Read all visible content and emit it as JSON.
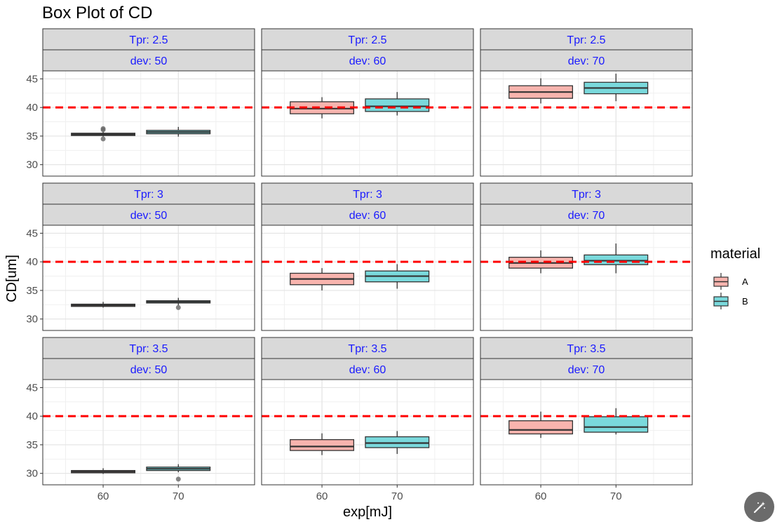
{
  "chart_data": {
    "type": "boxplot",
    "title": "Box Plot of CD",
    "xlabel": "exp[mJ]",
    "ylabel": "CD[um]",
    "ylim": [
      28,
      46.4
    ],
    "y_ticks": [
      "30",
      "35",
      "40",
      "45"
    ],
    "x_tick_labels": [
      "60",
      "70"
    ],
    "reference_line": {
      "y": 40,
      "color": "#ff0000",
      "style": "dashed"
    },
    "legend": {
      "title": "material",
      "position": "right",
      "entries": [
        {
          "label": "A",
          "color": "#f8b4ae"
        },
        {
          "label": "B",
          "color": "#7ad9dc"
        }
      ]
    },
    "grid": true,
    "strip_text_color": "#1a1aff",
    "facets": [
      {
        "row_label": "Tpr: 2.5",
        "col_label": "dev: 50",
        "boxes": [
          {
            "material": "A",
            "exp": "60",
            "whisker_low": 34.9,
            "q1": 35.1,
            "median": 35.3,
            "q3": 35.5,
            "whisker_high": 35.8,
            "outliers": [
              36.1,
              36.3,
              34.5
            ]
          },
          {
            "material": "B",
            "exp": "70",
            "whisker_low": 34.9,
            "q1": 35.4,
            "median": 35.7,
            "q3": 36.0,
            "whisker_high": 36.6,
            "outliers": []
          }
        ]
      },
      {
        "row_label": "Tpr: 2.5",
        "col_label": "dev: 60",
        "boxes": [
          {
            "material": "A",
            "exp": "60",
            "whisker_low": 38.1,
            "q1": 38.9,
            "median": 39.8,
            "q3": 41.0,
            "whisker_high": 41.8,
            "outliers": []
          },
          {
            "material": "B",
            "exp": "70",
            "whisker_low": 38.6,
            "q1": 39.3,
            "median": 40.2,
            "q3": 41.5,
            "whisker_high": 42.7,
            "outliers": []
          }
        ]
      },
      {
        "row_label": "Tpr: 2.5",
        "col_label": "dev: 70",
        "boxes": [
          {
            "material": "A",
            "exp": "60",
            "whisker_low": 40.7,
            "q1": 41.6,
            "median": 42.7,
            "q3": 43.8,
            "whisker_high": 45.1,
            "outliers": []
          },
          {
            "material": "B",
            "exp": "70",
            "whisker_low": 41.1,
            "q1": 42.4,
            "median": 43.4,
            "q3": 44.4,
            "whisker_high": 45.9,
            "outliers": []
          }
        ]
      },
      {
        "row_label": "Tpr: 3",
        "col_label": "dev: 50",
        "boxes": [
          {
            "material": "A",
            "exp": "60",
            "whisker_low": 32.0,
            "q1": 32.2,
            "median": 32.4,
            "q3": 32.6,
            "whisker_high": 33.0,
            "outliers": []
          },
          {
            "material": "B",
            "exp": "70",
            "whisker_low": 32.4,
            "q1": 32.8,
            "median": 33.0,
            "q3": 33.2,
            "whisker_high": 33.7,
            "outliers": [
              32.0
            ]
          }
        ]
      },
      {
        "row_label": "Tpr: 3",
        "col_label": "dev: 60",
        "boxes": [
          {
            "material": "A",
            "exp": "60",
            "whisker_low": 35.0,
            "q1": 36.0,
            "median": 37.0,
            "q3": 38.0,
            "whisker_high": 38.9,
            "outliers": []
          },
          {
            "material": "B",
            "exp": "70",
            "whisker_low": 35.3,
            "q1": 36.5,
            "median": 37.5,
            "q3": 38.4,
            "whisker_high": 39.6,
            "outliers": []
          }
        ]
      },
      {
        "row_label": "Tpr: 3",
        "col_label": "dev: 70",
        "boxes": [
          {
            "material": "A",
            "exp": "60",
            "whisker_low": 38.0,
            "q1": 38.9,
            "median": 39.8,
            "q3": 40.8,
            "whisker_high": 42.0,
            "outliers": []
          },
          {
            "material": "B",
            "exp": "70",
            "whisker_low": 38.0,
            "q1": 39.5,
            "median": 40.2,
            "q3": 41.2,
            "whisker_high": 43.2,
            "outliers": []
          }
        ]
      },
      {
        "row_label": "Tpr: 3.5",
        "col_label": "dev: 50",
        "boxes": [
          {
            "material": "A",
            "exp": "60",
            "whisker_low": 29.9,
            "q1": 30.1,
            "median": 30.3,
            "q3": 30.5,
            "whisker_high": 30.9,
            "outliers": []
          },
          {
            "material": "B",
            "exp": "70",
            "whisker_low": 30.2,
            "q1": 30.5,
            "median": 30.8,
            "q3": 31.1,
            "whisker_high": 31.6,
            "outliers": [
              29.0
            ]
          }
        ]
      },
      {
        "row_label": "Tpr: 3.5",
        "col_label": "dev: 60",
        "boxes": [
          {
            "material": "A",
            "exp": "60",
            "whisker_low": 33.2,
            "q1": 34.0,
            "median": 34.7,
            "q3": 35.9,
            "whisker_high": 37.0,
            "outliers": []
          },
          {
            "material": "B",
            "exp": "70",
            "whisker_low": 33.4,
            "q1": 34.5,
            "median": 35.3,
            "q3": 36.4,
            "whisker_high": 37.4,
            "outliers": []
          }
        ]
      },
      {
        "row_label": "Tpr: 3.5",
        "col_label": "dev: 70",
        "boxes": [
          {
            "material": "A",
            "exp": "60",
            "whisker_low": 36.2,
            "q1": 36.9,
            "median": 37.6,
            "q3": 39.2,
            "whisker_high": 40.8,
            "outliers": []
          },
          {
            "material": "B",
            "exp": "70",
            "whisker_low": 36.8,
            "q1": 37.2,
            "median": 38.1,
            "q3": 39.9,
            "whisker_high": 41.4,
            "outliers": []
          }
        ]
      }
    ]
  },
  "toolbar": {
    "fab_icon": "magic-wand-icon"
  }
}
